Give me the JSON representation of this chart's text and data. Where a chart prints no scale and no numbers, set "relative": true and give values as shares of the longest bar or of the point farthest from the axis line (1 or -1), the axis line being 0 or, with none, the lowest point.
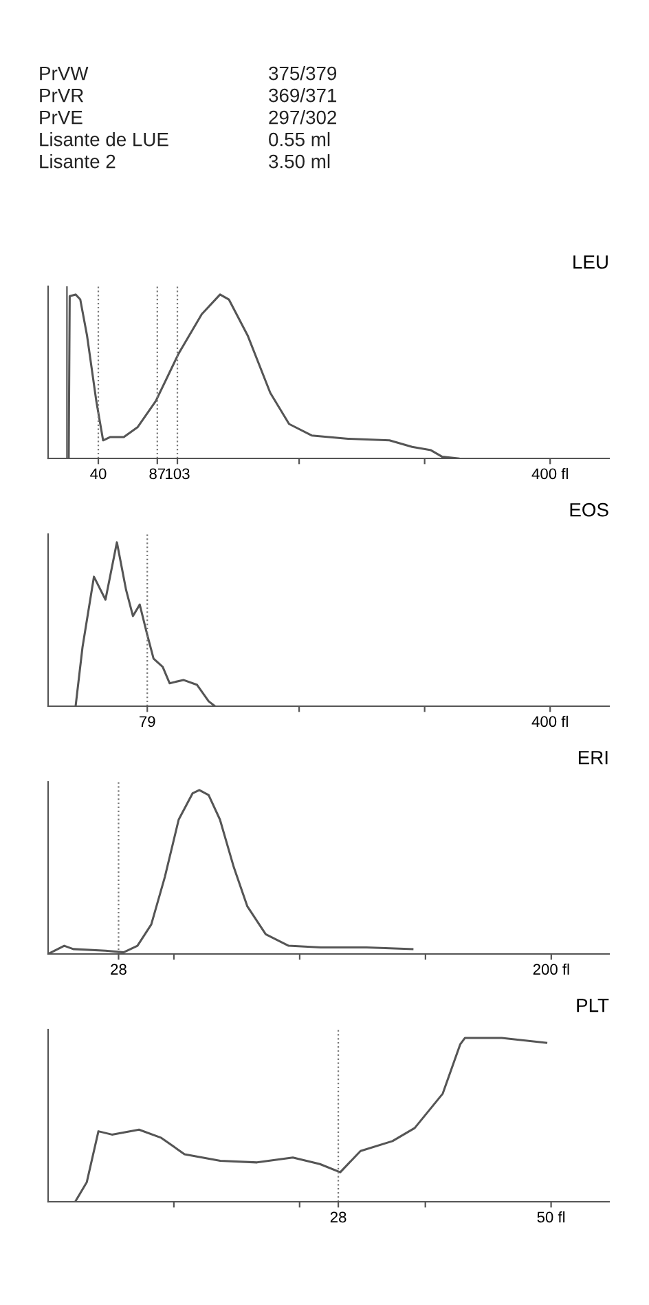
{
  "chart_data": [
    {
      "type": "other",
      "annotations": [
        "PrVW",
        "375/379",
        "PrVR",
        "369/371",
        "PrVE",
        "297/302",
        "Lisante de LUE",
        "0.55 ml",
        "Lisante 2",
        "3.50 ml"
      ]
    },
    {
      "type": "line",
      "title": "LEU",
      "relative": true,
      "grid": false,
      "tick_labels": "x",
      "marker": "none",
      "line_style": "solid",
      "xlim": [
        0,
        447
      ],
      "xticks": [
        40,
        87,
        103,
        {
          "value": 200,
          "label": null
        },
        {
          "value": 300,
          "label": null
        },
        {
          "value": 400,
          "label": "400 fl"
        }
      ],
      "ref_lines": [
        {
          "axis": "x",
          "value": 15,
          "line_style": "solid",
          "color": "#555555"
        },
        {
          "axis": "x",
          "value": 40,
          "line_style": "dotted",
          "color": "#777777"
        },
        {
          "axis": "x",
          "value": 87,
          "line_style": "dotted",
          "color": "#777777"
        },
        {
          "axis": "x",
          "value": 103,
          "line_style": "dotted",
          "color": "#777777"
        }
      ],
      "series": [
        {
          "color": "#555555",
          "x": [
            16.4,
            17.2,
            21.9,
            25.6,
            31,
            38.4,
            43.8,
            49.3,
            60.3,
            71.2,
            85.8,
            104,
            122.4,
            137,
            144,
            159,
            177,
            192,
            210,
            239,
            272,
            290,
            305,
            314,
            327
          ],
          "values": [
            0,
            0.99,
            1,
            0.97,
            0.75,
            0.35,
            0.11,
            0.13,
            0.13,
            0.19,
            0.35,
            0.64,
            0.88,
            1,
            0.97,
            0.75,
            0.4,
            0.21,
            0.14,
            0.12,
            0.11,
            0.07,
            0.05,
            0.01,
            0
          ]
        }
      ]
    },
    {
      "type": "line",
      "title": "EOS",
      "relative": true,
      "grid": false,
      "tick_labels": "x",
      "marker": "none",
      "line_style": "solid",
      "xlim": [
        0,
        447
      ],
      "xticks": [
        79,
        {
          "value": 200,
          "label": null
        },
        {
          "value": 300,
          "label": null
        },
        {
          "value": 400,
          "label": "400 fl"
        }
      ],
      "ref_lines": [
        {
          "axis": "x",
          "value": 79,
          "line_style": "dotted",
          "color": "#777777"
        }
      ],
      "series": [
        {
          "color": "#555555",
          "x": [
            21.9,
            27.4,
            36.5,
            45.7,
            54.8,
            62.1,
            67.6,
            73,
            78.5,
            84,
            91.3,
            96.8,
            107.8,
            118.7,
            127.9,
            133
          ],
          "values": [
            0,
            0.36,
            0.79,
            0.65,
            1,
            0.71,
            0.55,
            0.62,
            0.45,
            0.29,
            0.24,
            0.14,
            0.16,
            0.13,
            0.03,
            0
          ]
        }
      ]
    },
    {
      "type": "line",
      "title": "ERI",
      "relative": true,
      "grid": false,
      "tick_labels": "x",
      "marker": "none",
      "line_style": "solid",
      "xlim": [
        0,
        223
      ],
      "xticks": [
        28,
        {
          "value": 50,
          "label": null
        },
        {
          "value": 100,
          "label": null
        },
        {
          "value": 150,
          "label": null
        },
        {
          "value": 200,
          "label": "200 fl"
        }
      ],
      "ref_lines": [
        {
          "axis": "x",
          "value": 28,
          "line_style": "dotted",
          "color": "#777777"
        }
      ],
      "series": [
        {
          "color": "#555555",
          "x": [
            0,
            6.4,
            10,
            22.8,
            30,
            35.5,
            41,
            46.4,
            51.9,
            57.4,
            60.1,
            63.8,
            68.3,
            73.8,
            79.2,
            86.5,
            95.6,
            108.4,
            126.6,
            144.8
          ],
          "values": [
            0,
            0.05,
            0.03,
            0.02,
            0.01,
            0.05,
            0.18,
            0.47,
            0.82,
            0.98,
            1,
            0.97,
            0.82,
            0.53,
            0.29,
            0.12,
            0.05,
            0.04,
            0.04,
            0.03
          ]
        }
      ]
    },
    {
      "type": "line",
      "title": "PLT",
      "relative": true,
      "grid": false,
      "tick_labels": "x",
      "marker": "none",
      "line_style": "solid",
      "xlim": [
        -2,
        56
      ],
      "xticks": [
        {
          "value": 11,
          "label": null
        },
        {
          "value": 24,
          "label": null
        },
        28,
        {
          "value": 37,
          "label": null
        },
        {
          "value": 50,
          "label": "50 fl"
        }
      ],
      "ref_lines": [
        {
          "axis": "x",
          "value": 28,
          "line_style": "dotted",
          "color": "#777777"
        }
      ],
      "series": [
        {
          "color": "#555555",
          "x": [
            0.8,
            2,
            3.2,
            4.6,
            7.4,
            9.7,
            12.1,
            15.8,
            19.6,
            23.3,
            26.1,
            28.2,
            30.3,
            33.6,
            35.9,
            38.8,
            40.6,
            41.1,
            44.9,
            49.5
          ],
          "values": [
            0,
            0.12,
            0.43,
            0.41,
            0.44,
            0.39,
            0.29,
            0.25,
            0.24,
            0.27,
            0.23,
            0.18,
            0.31,
            0.37,
            0.45,
            0.66,
            0.96,
            1,
            1,
            0.97
          ]
        }
      ]
    }
  ]
}
